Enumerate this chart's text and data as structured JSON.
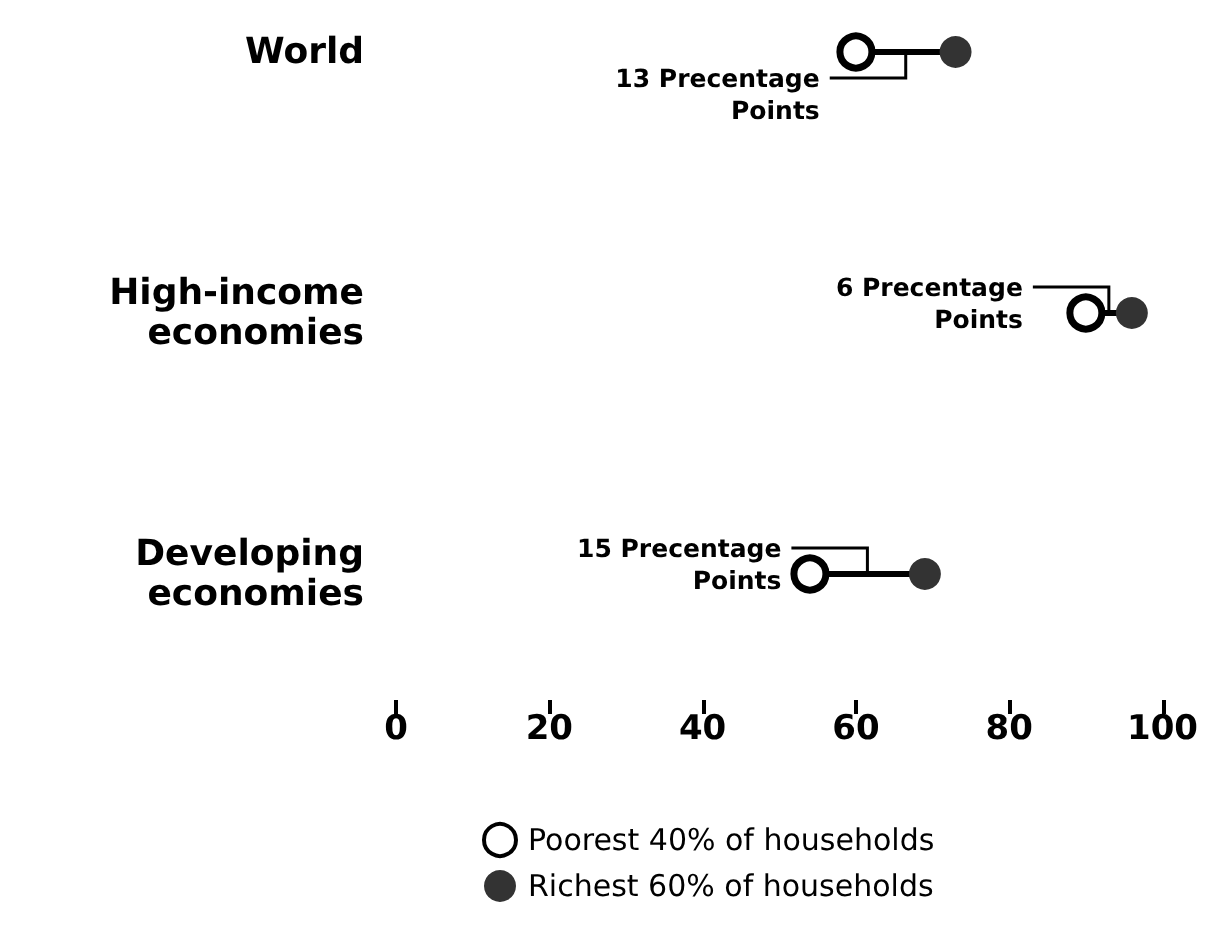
{
  "chart_data": {
    "type": "scatter",
    "orientation": "horizontal",
    "categories": [
      "World",
      "High-income\neconomies",
      "Developing\neconomies"
    ],
    "series": [
      {
        "name": "Poorest 40% of households",
        "color": "#ffffff",
        "values": [
          60,
          90,
          54
        ]
      },
      {
        "name": "Richest 60% of households",
        "color": "#333333",
        "values": [
          73,
          96,
          69
        ]
      }
    ],
    "annotations": [
      "13 Precentage\nPoints",
      {
        "text": "6 Precentage\nPoints",
        "x": 93,
        "y": "High-income\neconomies"
      },
      "15 Precentage\nPoints"
    ],
    "xlim": [
      0,
      100
    ],
    "xticks": [
      0,
      20,
      40,
      60,
      80,
      100
    ],
    "grid": false,
    "legend": "bottom",
    "marker": "circle"
  }
}
